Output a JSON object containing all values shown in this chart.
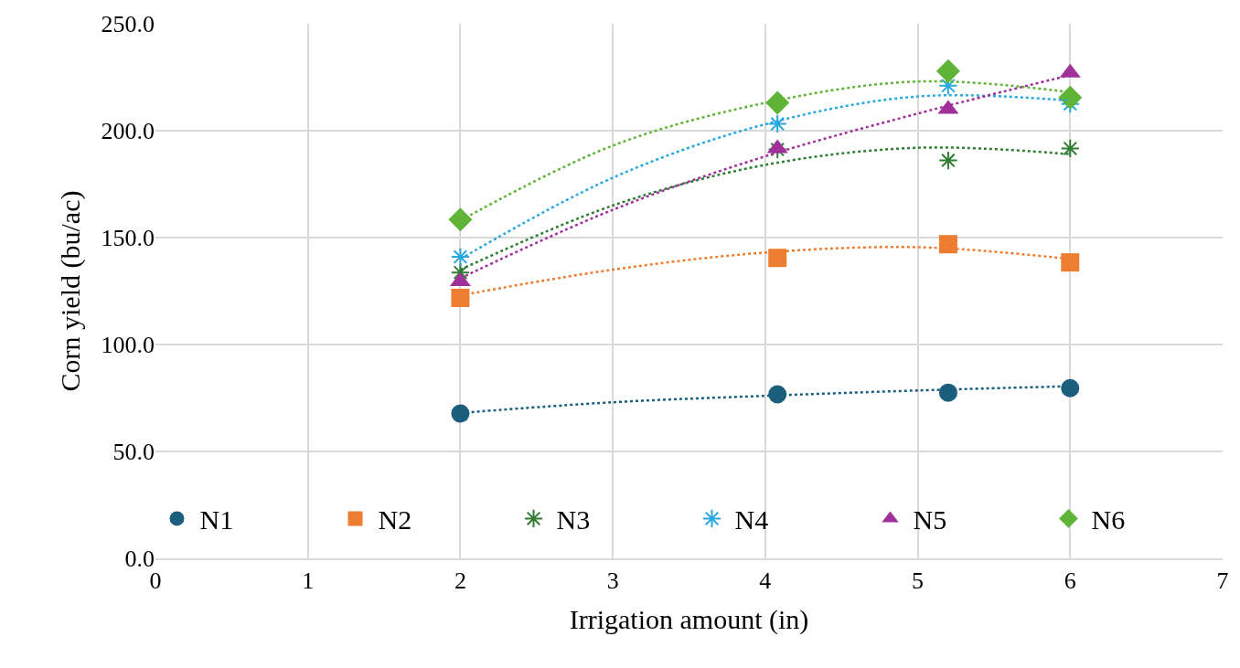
{
  "chart_data": {
    "type": "scatter",
    "xlabel": "Irrigation amount (in)",
    "ylabel": "Corn yield (bu/ac)",
    "xlim": [
      0,
      7
    ],
    "xticks": [
      0,
      1,
      2,
      3,
      4,
      5,
      6,
      7
    ],
    "ylim": [
      0,
      250
    ],
    "yticks": [
      {
        "value": 0,
        "label": "0.0"
      },
      {
        "value": 50,
        "label": "50.0"
      },
      {
        "value": 100,
        "label": "100.0"
      },
      {
        "value": 150,
        "label": "150.0"
      },
      {
        "value": 200,
        "label": "200.0"
      },
      {
        "value": 250,
        "label": "250.0"
      }
    ],
    "grid": true,
    "legend": "bottom",
    "series": [
      {
        "name": "N1",
        "color": "#1b5e7e",
        "marker": "circle",
        "x": [
          2,
          4.08,
          5.2,
          6
        ],
        "values": [
          67.7,
          76.7,
          77.5,
          79.6
        ]
      },
      {
        "name": "N2",
        "color": "#ed7d31",
        "marker": "square",
        "x": [
          2,
          4.08,
          5.2,
          6
        ],
        "values": [
          121.8,
          140.5,
          146.9,
          138.4
        ]
      },
      {
        "name": "N3",
        "color": "#2e7d32",
        "marker": "cross",
        "x": [
          2,
          4.08,
          5.2,
          6
        ],
        "values": [
          133.7,
          191.2,
          186.1,
          191.7
        ]
      },
      {
        "name": "N4",
        "color": "#29a8e0",
        "marker": "cross",
        "x": [
          2,
          4.08,
          5.2,
          6
        ],
        "values": [
          141,
          203.2,
          221,
          212.5
        ]
      },
      {
        "name": "N5",
        "color": "#a0309a",
        "marker": "triangle",
        "x": [
          2,
          4.08,
          5.2,
          6
        ],
        "values": [
          129.5,
          191.7,
          210,
          227
        ]
      },
      {
        "name": "N6",
        "color": "#5fb337",
        "marker": "diamond",
        "x": [
          2,
          4.08,
          5.2,
          6
        ],
        "values": [
          158.4,
          213,
          227.9,
          215.5
        ]
      },
      {
        "type": "line",
        "color": "#1b5e7e",
        "marker": "none",
        "line_style": "dotted",
        "x": [
          2,
          3,
          4,
          5,
          6
        ],
        "values": [
          68,
          73,
          76,
          78.5,
          80.5
        ]
      },
      {
        "type": "line",
        "color": "#ed7d31",
        "marker": "none",
        "line_style": "dotted",
        "x": [
          2,
          3,
          4,
          5,
          6
        ],
        "values": [
          123,
          135,
          143,
          145.5,
          140
        ]
      },
      {
        "type": "line",
        "color": "#2e7d32",
        "marker": "none",
        "line_style": "dotted",
        "x": [
          2,
          3,
          4,
          5,
          6
        ],
        "values": [
          135,
          165,
          184,
          192,
          189
        ]
      },
      {
        "type": "line",
        "color": "#29a8e0",
        "marker": "none",
        "line_style": "dotted",
        "x": [
          2,
          3,
          4,
          5,
          6
        ],
        "values": [
          140,
          178,
          203,
          216,
          214
        ]
      },
      {
        "type": "line",
        "color": "#a0309a",
        "marker": "none",
        "line_style": "dotted",
        "x": [
          2,
          3,
          4,
          5,
          6
        ],
        "values": [
          131,
          163,
          188,
          208,
          226
        ]
      },
      {
        "type": "line",
        "color": "#5fb337",
        "marker": "none",
        "line_style": "dotted",
        "x": [
          2,
          3,
          4,
          5,
          6
        ],
        "values": [
          158,
          193,
          213,
          223,
          218
        ]
      }
    ]
  }
}
